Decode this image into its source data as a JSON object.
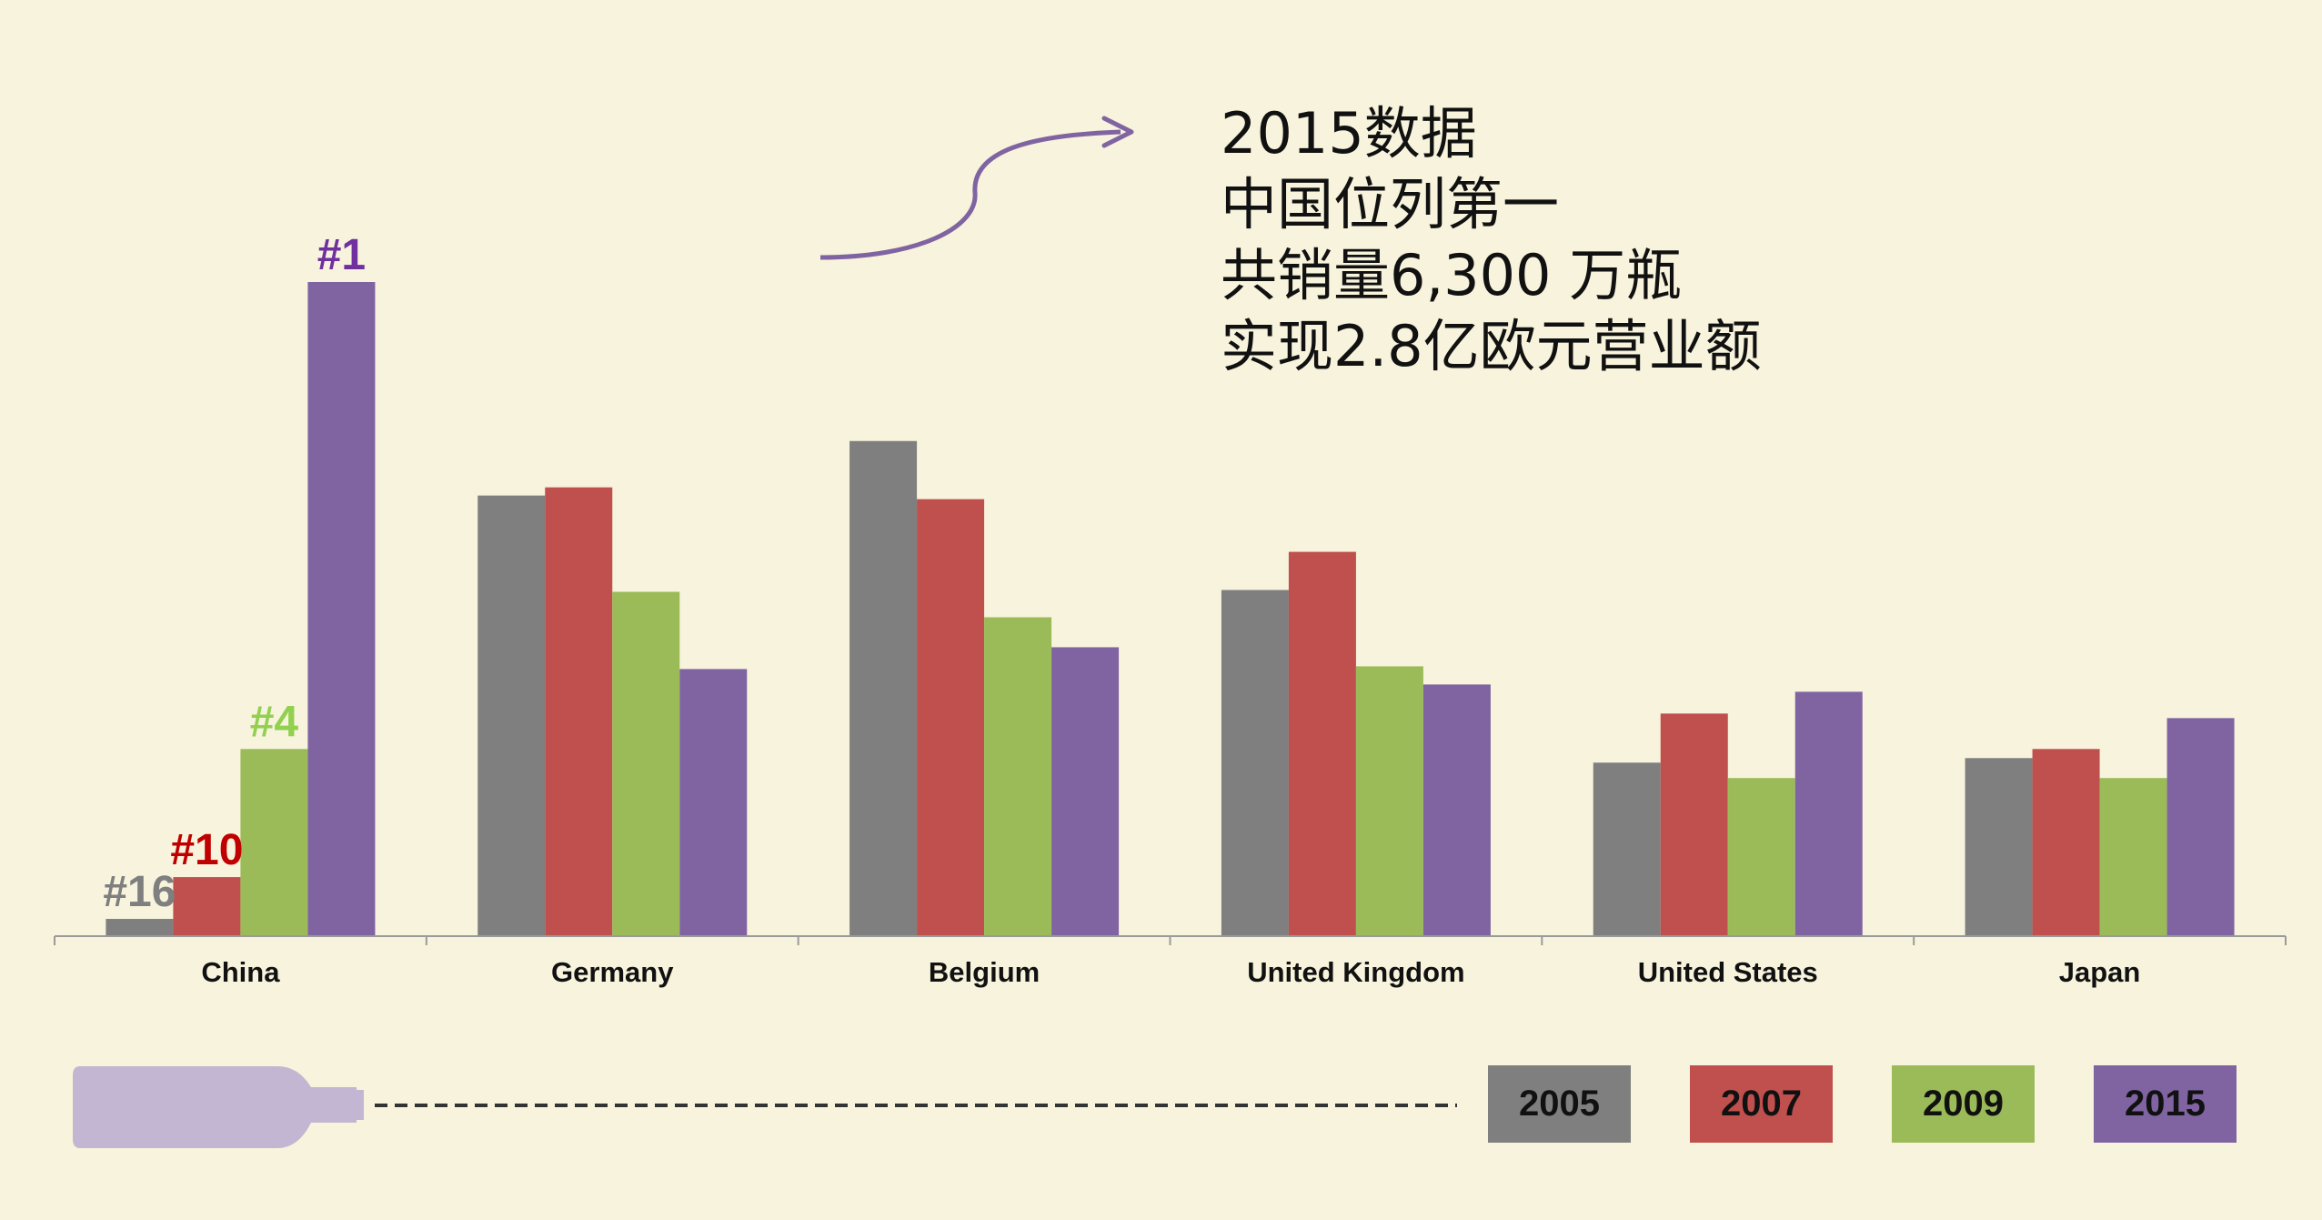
{
  "annotation": {
    "lines": [
      "2015数据",
      "中国位列第一",
      "共销量6,300 万瓶",
      "实现2.8亿欧元营业额"
    ]
  },
  "chart_data": {
    "type": "bar",
    "categories": [
      "China",
      "Germany",
      "Belgium",
      "United Kingdom",
      "United States",
      "Japan"
    ],
    "series": [
      {
        "name": "2005",
        "color": "#7f7f7f",
        "values": [
          1.9,
          48.5,
          54.5,
          38.1,
          19.1,
          19.6
        ]
      },
      {
        "name": "2007",
        "color": "#c0504d",
        "values": [
          6.5,
          49.4,
          48.1,
          42.3,
          24.5,
          20.6
        ]
      },
      {
        "name": "2009",
        "color": "#9bbb59",
        "values": [
          20.6,
          37.9,
          35.1,
          29.7,
          17.4,
          17.4
        ]
      },
      {
        "name": "2015",
        "color": "#8064a2",
        "values": [
          72.0,
          29.4,
          31.8,
          27.7,
          26.9,
          24.0
        ]
      }
    ],
    "ylim": [
      0,
      80
    ],
    "rank_labels": [
      {
        "series": "2005",
        "category": "China",
        "text": "#16",
        "color": "#7f7f7f"
      },
      {
        "series": "2007",
        "category": "China",
        "text": "#10",
        "color": "#c00000"
      },
      {
        "series": "2009",
        "category": "China",
        "text": "#4",
        "color": "#92d050"
      },
      {
        "series": "2015",
        "category": "China",
        "text": "#1",
        "color": "#7030a0"
      }
    ],
    "legend_position": "bottom-right",
    "grid": false
  },
  "decoration": {
    "bottle_icon": "wine-bottle-icon",
    "arrow_icon": "curved-arrow-icon",
    "bottle_color": "#c3b6d3"
  }
}
